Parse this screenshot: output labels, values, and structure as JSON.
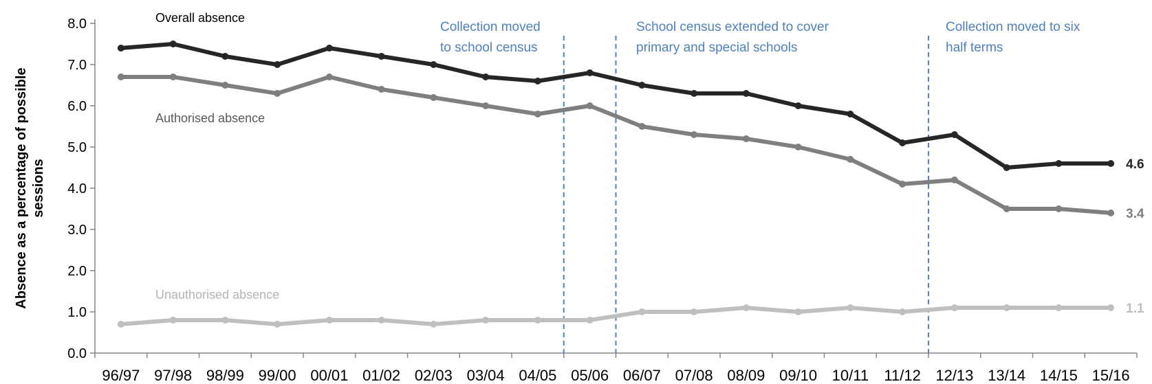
{
  "chart_data": {
    "type": "line",
    "ylabel": "Absence as a percentage of possible sessions",
    "xlabel": "",
    "ylim": [
      0,
      8
    ],
    "yticks": [
      "0.0",
      "1.0",
      "2.0",
      "3.0",
      "4.0",
      "5.0",
      "6.0",
      "7.0",
      "8.0"
    ],
    "categories": [
      "96/97",
      "97/98",
      "98/99",
      "99/00",
      "00/01",
      "01/02",
      "02/03",
      "03/04",
      "04/05",
      "05/06",
      "06/07",
      "07/08",
      "08/09",
      "09/10",
      "10/11",
      "11/12",
      "12/13",
      "13/14",
      "14/15",
      "15/16"
    ],
    "series": [
      {
        "name": "Overall absence",
        "color": "#262626",
        "values": [
          7.4,
          7.5,
          7.2,
          7.0,
          7.4,
          7.2,
          7.0,
          6.7,
          6.6,
          6.8,
          6.5,
          6.3,
          6.3,
          6.0,
          5.8,
          5.1,
          5.3,
          4.5,
          4.6,
          4.6
        ],
        "end_label": "4.6"
      },
      {
        "name": "Authorised absence",
        "color": "#7f7f7f",
        "values": [
          6.7,
          6.7,
          6.5,
          6.3,
          6.7,
          6.4,
          6.2,
          6.0,
          5.8,
          6.0,
          5.5,
          5.3,
          5.2,
          5.0,
          4.7,
          4.1,
          4.2,
          3.5,
          3.5,
          3.4
        ],
        "end_label": "3.4"
      },
      {
        "name": "Unauthorised absence",
        "color": "#bfbfbf",
        "values": [
          0.7,
          0.8,
          0.8,
          0.7,
          0.8,
          0.8,
          0.7,
          0.8,
          0.8,
          0.8,
          1.0,
          1.0,
          1.1,
          1.0,
          1.1,
          1.0,
          1.1,
          1.1,
          1.1,
          1.1
        ],
        "end_label": "1.1"
      }
    ],
    "annotations": [
      {
        "after_category": "04/05",
        "lines": [
          "Collection moved",
          "to school census"
        ]
      },
      {
        "after_category": "05/06",
        "lines": [
          "School census extended to cover",
          "primary and special schools"
        ]
      },
      {
        "after_category": "11/12",
        "lines": [
          "Collection moved to six",
          "half terms"
        ]
      }
    ],
    "annotation_color": "#4f81bd",
    "grid": false,
    "legend": "inline labels"
  }
}
